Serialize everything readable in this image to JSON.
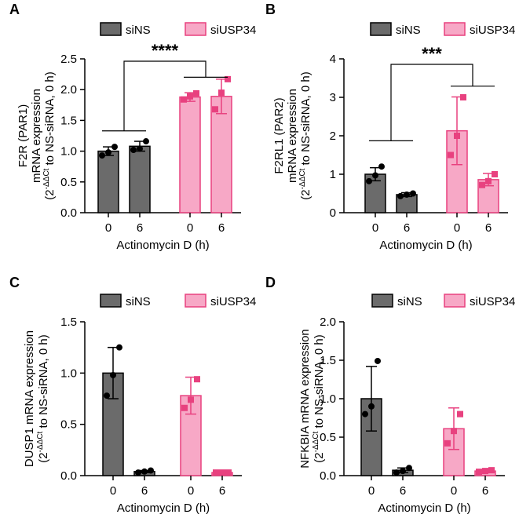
{
  "colors": {
    "siNS_fill": "#6b6b6b",
    "siUSP34_fill": "#f7a8c6",
    "siUSP34_edge": "#e8417f",
    "axis": "#000000"
  },
  "chart_data": [
    {
      "panel": "A",
      "type": "bar",
      "legend": [
        "siNS",
        "siUSP34"
      ],
      "series": [
        {
          "name": "siNS",
          "categories": [
            "0",
            "6"
          ],
          "values": [
            1.0,
            1.08
          ],
          "errors": [
            0.07,
            0.08
          ],
          "points": [
            [
              0.93,
              0.98,
              1.07
            ],
            [
              1.02,
              1.04,
              1.16
            ]
          ]
        },
        {
          "name": "siUSP34",
          "categories": [
            "0",
            "6"
          ],
          "values": [
            1.88,
            1.89
          ],
          "errors": [
            0.07,
            0.28
          ],
          "points": [
            [
              1.84,
              1.89,
              1.94
            ],
            [
              1.68,
              1.95,
              2.17
            ]
          ]
        }
      ],
      "xlabel": "Actinomycin D (h)",
      "ylabel_lines": [
        "F2R (PAR1)",
        "mRNA expression",
        "(2",
        "-ΔΔCt",
        " to NS-siRNA, 0 h)"
      ],
      "yticks": [
        "0.0",
        "0.5",
        "1.0",
        "1.5",
        "2.0",
        "2.5"
      ],
      "ylim": [
        0,
        2.5
      ],
      "significance": "****"
    },
    {
      "panel": "B",
      "type": "bar",
      "legend": [
        "siNS",
        "siUSP34"
      ],
      "series": [
        {
          "name": "siNS",
          "categories": [
            "0",
            "6"
          ],
          "values": [
            1.0,
            0.47
          ],
          "errors": [
            0.17,
            0.05
          ],
          "points": [
            [
              0.82,
              0.97,
              1.2
            ],
            [
              0.43,
              0.47,
              0.5
            ]
          ]
        },
        {
          "name": "siUSP34",
          "categories": [
            "0",
            "6"
          ],
          "values": [
            2.13,
            0.86
          ],
          "errors": [
            0.88,
            0.16
          ],
          "points": [
            [
              1.5,
              2.0,
              3.0
            ],
            [
              0.72,
              0.82,
              1.0
            ]
          ]
        }
      ],
      "xlabel": "Actinomycin D (h)",
      "ylabel_lines": [
        "F2RL1 (PAR2)",
        "mRNA expression",
        "(2",
        "-ΔΔCt",
        " to NS-siRNA, 0 h)"
      ],
      "yticks": [
        "0",
        "1",
        "2",
        "3",
        "4"
      ],
      "ylim": [
        0,
        4
      ],
      "significance": "***"
    },
    {
      "panel": "C",
      "type": "bar",
      "legend": [
        "siNS",
        "siUSP34"
      ],
      "series": [
        {
          "name": "siNS",
          "categories": [
            "0",
            "6"
          ],
          "values": [
            1.0,
            0.04
          ],
          "errors": [
            0.25,
            0.01
          ],
          "points": [
            [
              0.78,
              0.98,
              1.25
            ],
            [
              0.03,
              0.04,
              0.05
            ]
          ]
        },
        {
          "name": "siUSP34",
          "categories": [
            "0",
            "6"
          ],
          "values": [
            0.78,
            0.03
          ],
          "errors": [
            0.18,
            0.0
          ],
          "points": [
            [
              0.66,
              0.74,
              0.94
            ],
            [
              0.03,
              0.03,
              0.03
            ]
          ]
        }
      ],
      "xlabel": "Actinomycin D (h)",
      "ylabel_lines": [
        "DUSP1 mRNA expression",
        "(2",
        "-ΔΔCt",
        " to NS-siRNA, 0 h)"
      ],
      "yticks": [
        "0.0",
        "0.5",
        "1.0",
        "1.5"
      ],
      "ylim": [
        0,
        1.5
      ]
    },
    {
      "panel": "D",
      "type": "bar",
      "legend": [
        "siNS",
        "siUSP34"
      ],
      "series": [
        {
          "name": "siNS",
          "categories": [
            "0",
            "6"
          ],
          "values": [
            1.0,
            0.07
          ],
          "errors": [
            0.42,
            0.03
          ],
          "points": [
            [
              0.8,
              0.9,
              1.49
            ],
            [
              0.04,
              0.06,
              0.1
            ]
          ]
        },
        {
          "name": "siUSP34",
          "categories": [
            "0",
            "6"
          ],
          "values": [
            0.61,
            0.06
          ],
          "errors": [
            0.27,
            0.01
          ],
          "points": [
            [
              0.42,
              0.58,
              0.8
            ],
            [
              0.05,
              0.06,
              0.07
            ]
          ]
        }
      ],
      "xlabel": "Actinomycin D (h)",
      "ylabel_lines": [
        "NFKBIA mRNA expression",
        "(2",
        "-ΔΔCt",
        " to NS-siRNA, 0 h)"
      ],
      "yticks": [
        "0.0",
        "0.5",
        "1.0",
        "1.5",
        "2.0"
      ],
      "ylim": [
        0,
        2.0
      ]
    }
  ]
}
